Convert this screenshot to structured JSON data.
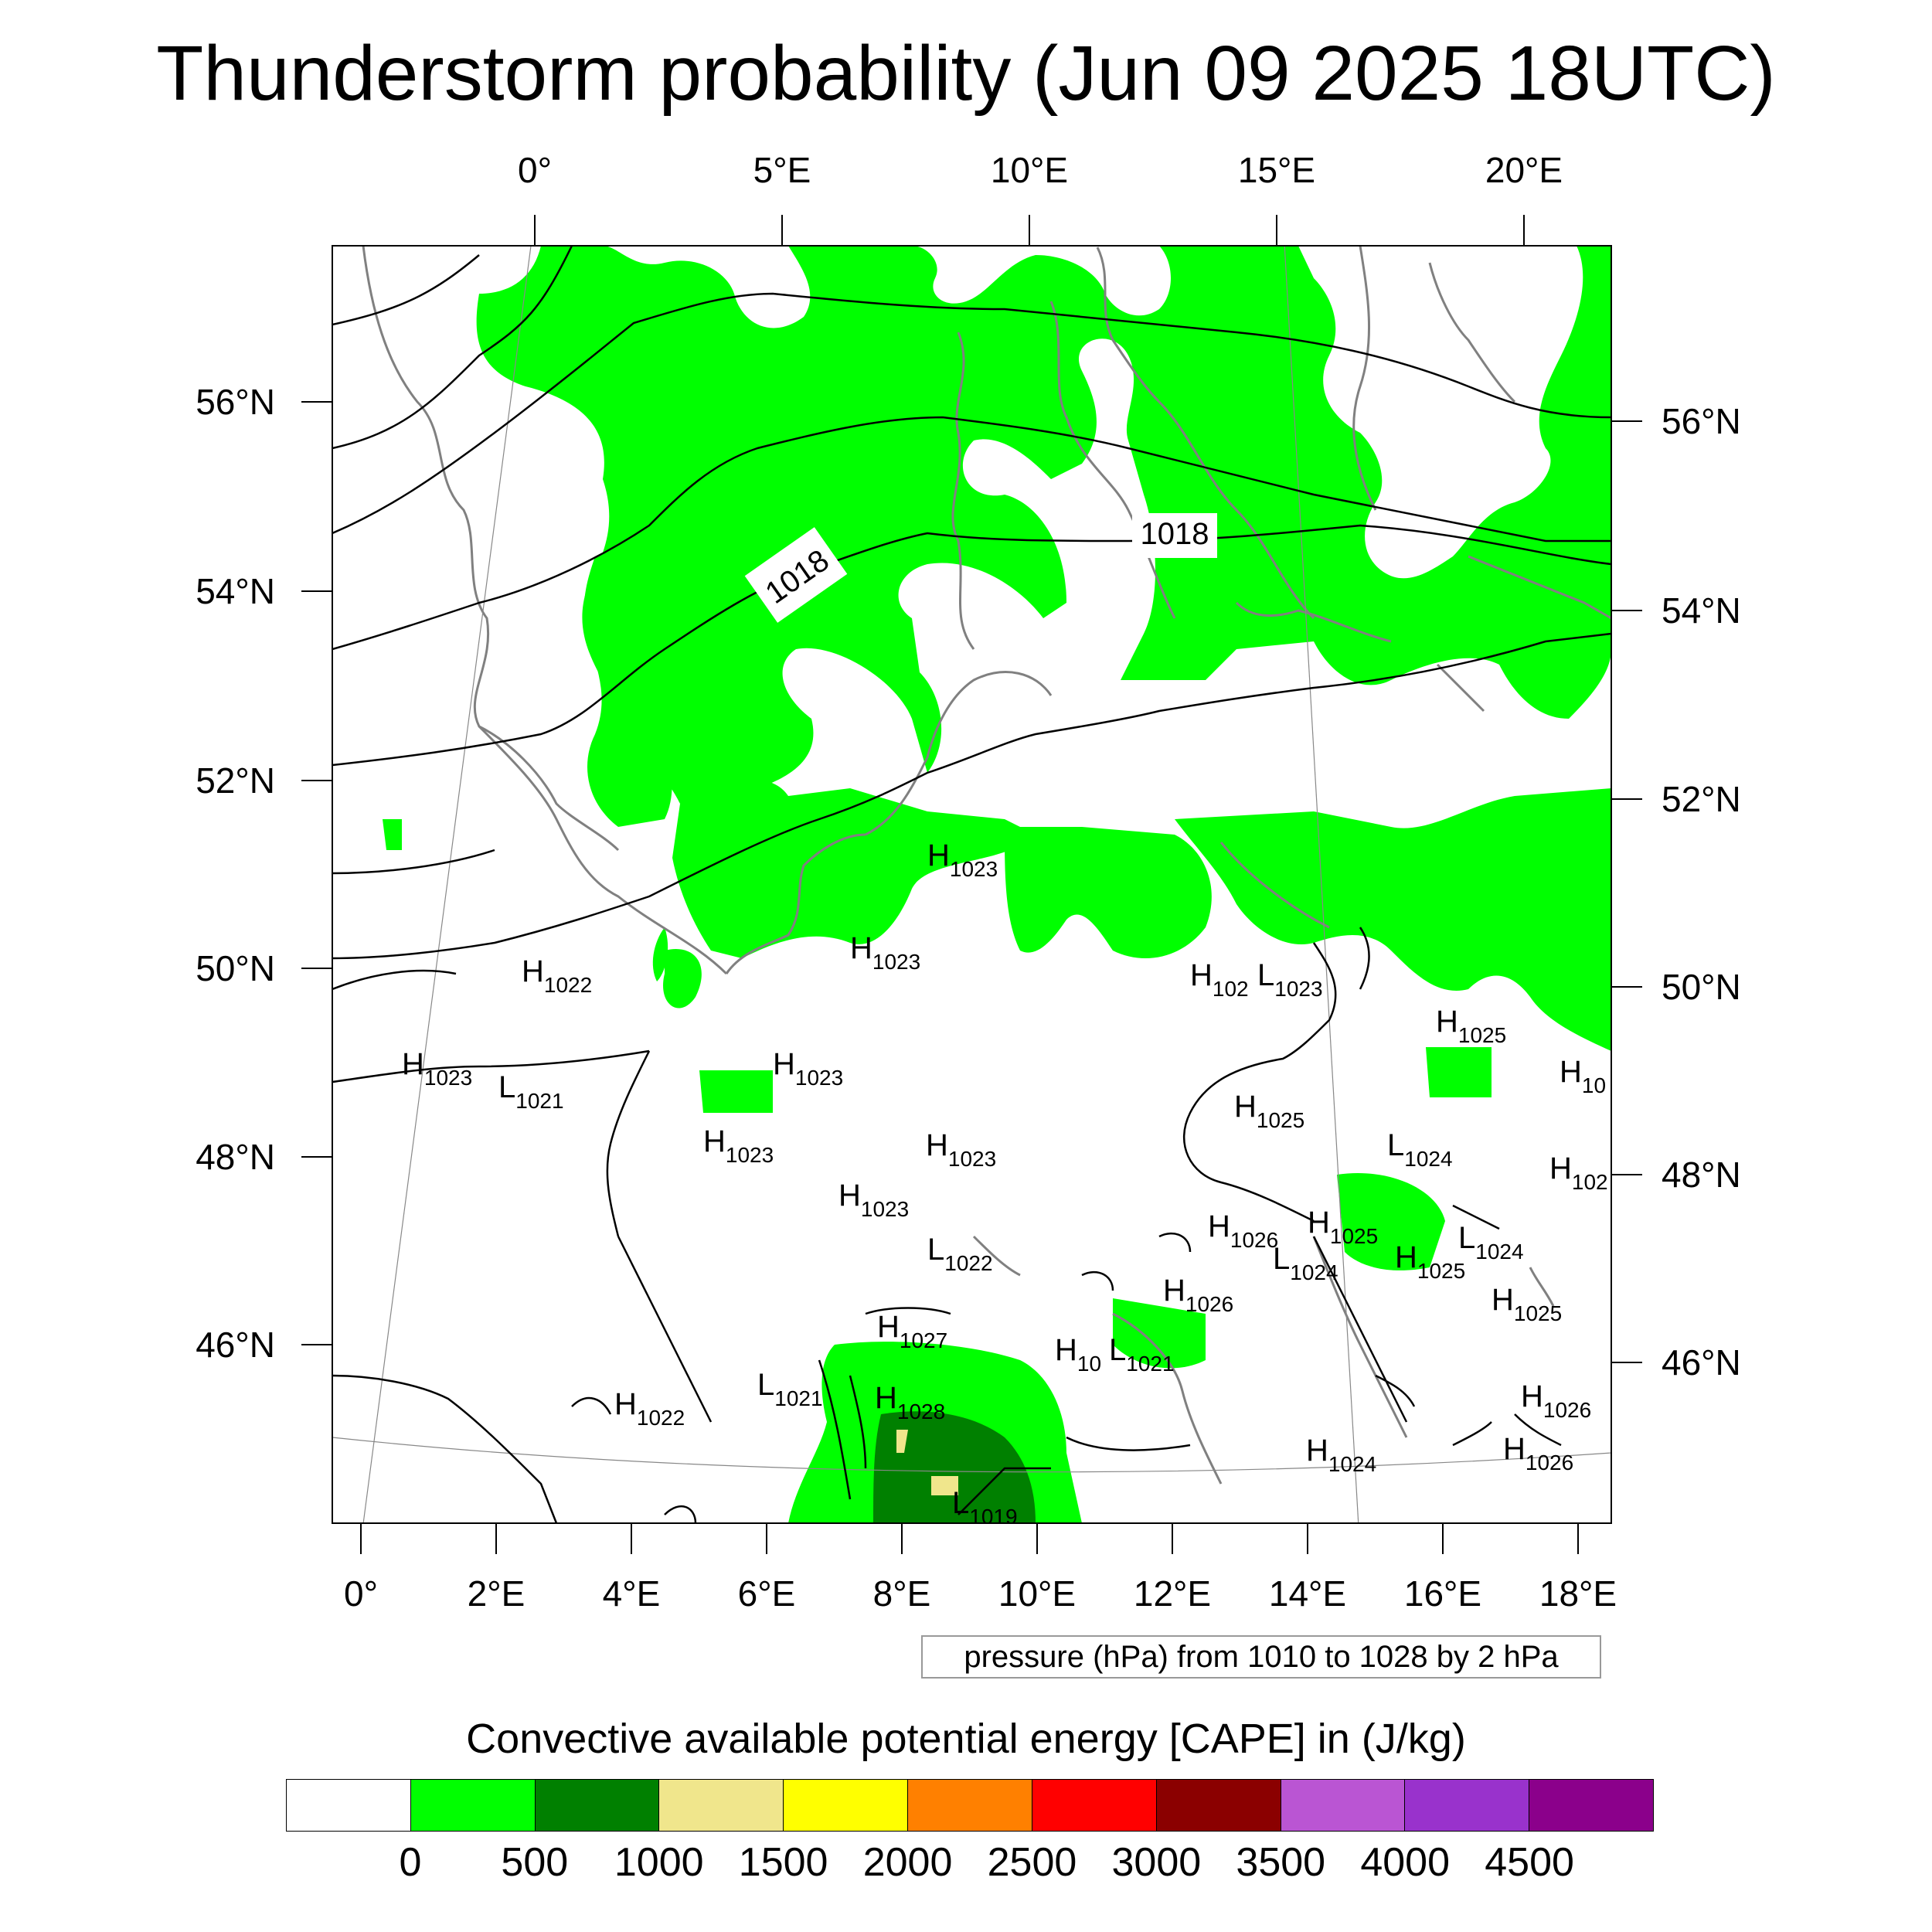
{
  "title": "Thunderstorm probability (Jun 09 2025 18UTC)",
  "map": {
    "top_lon_ticks": [
      "0°",
      "5°E",
      "10°E",
      "15°E",
      "20°E"
    ],
    "bottom_lon_ticks": [
      "0°",
      "2°E",
      "4°E",
      "6°E",
      "8°E",
      "10°E",
      "12°E",
      "14°E",
      "16°E",
      "18°E"
    ],
    "left_lat_ticks": [
      "56°N",
      "54°N",
      "52°N",
      "50°N",
      "48°N",
      "46°N"
    ],
    "right_lat_ticks": [
      "56°N",
      "54°N",
      "52°N",
      "50°N",
      "48°N",
      "46°N"
    ],
    "isobar_labels": [
      "1018",
      "1018"
    ],
    "pressure_centers": [
      {
        "letter": "H",
        "value": "1023"
      },
      {
        "letter": "H",
        "value": "1023"
      },
      {
        "letter": "H",
        "value": "1022"
      },
      {
        "letter": "H",
        "value": "1023"
      },
      {
        "letter": "L",
        "value": "1021"
      },
      {
        "letter": "H",
        "value": "1023"
      },
      {
        "letter": "H",
        "value": "1023"
      },
      {
        "letter": "H",
        "value": "1023"
      },
      {
        "letter": "H",
        "value": "1023"
      },
      {
        "letter": "H",
        "value": "102"
      },
      {
        "letter": "L",
        "value": "1023"
      },
      {
        "letter": "H",
        "value": "1025"
      },
      {
        "letter": "H",
        "value": "10"
      },
      {
        "letter": "H",
        "value": "1025"
      },
      {
        "letter": "L",
        "value": "1024"
      },
      {
        "letter": "H",
        "value": "102"
      },
      {
        "letter": "H",
        "value": "1026"
      },
      {
        "letter": "H",
        "value": "1025"
      },
      {
        "letter": "L",
        "value": "1024"
      },
      {
        "letter": "L",
        "value": "1024"
      },
      {
        "letter": "H",
        "value": "1025"
      },
      {
        "letter": "L",
        "value": "1022"
      },
      {
        "letter": "H",
        "value": "1026"
      },
      {
        "letter": "H",
        "value": "1025"
      },
      {
        "letter": "H",
        "value": "1027"
      },
      {
        "letter": "H",
        "value": "10"
      },
      {
        "letter": "L",
        "value": "1021"
      },
      {
        "letter": "L",
        "value": "1021"
      },
      {
        "letter": "H",
        "value": "1028"
      },
      {
        "letter": "H",
        "value": "1022"
      },
      {
        "letter": "H",
        "value": "1026"
      },
      {
        "letter": "H",
        "value": "1026"
      },
      {
        "letter": "H",
        "value": "1024"
      },
      {
        "letter": "L",
        "value": "1019"
      }
    ]
  },
  "pressure_note": "pressure (hPa) from 1010 to 1028 by 2 hPa",
  "legend": {
    "title": "Convective available potential energy [CAPE] in (J/kg)",
    "colors": [
      "#ffffff",
      "#00ff00",
      "#008000",
      "#f0e68c",
      "#ffff00",
      "#ff8000",
      "#ff0000",
      "#8b0000",
      "#ba55d3",
      "#9932cc",
      "#8b008b"
    ],
    "labels": [
      "0",
      "500",
      "1000",
      "1500",
      "2000",
      "2500",
      "3000",
      "3500",
      "4000",
      "4500"
    ]
  },
  "colors": {
    "cape_0_500": "#00ff00",
    "cape_500_1000": "#008000",
    "cape_1000_1500": "#f0e68c",
    "coastline": "#808080",
    "isobar": "#000000"
  }
}
